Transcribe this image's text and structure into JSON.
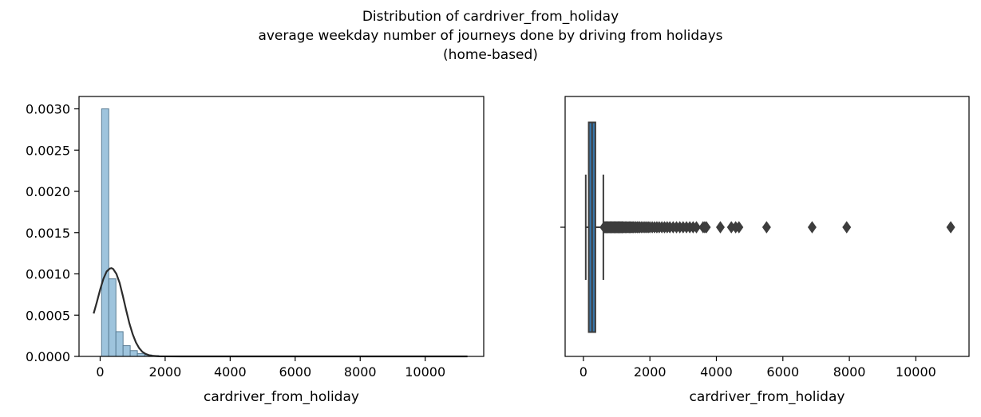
{
  "title_lines": [
    "Distribution of cardriver_from_holiday",
    "average weekday number of journeys done by driving from holidays",
    "(home-based)"
  ],
  "chart_data": [
    {
      "type": "histogram",
      "xlabel": "cardriver_from_holiday",
      "ylabel": "",
      "xlim": [
        -650,
        11800
      ],
      "ylim": [
        0,
        0.00315
      ],
      "xticks": [
        0,
        2000,
        4000,
        6000,
        8000,
        10000
      ],
      "xtick_labels": [
        "0",
        "2000",
        "4000",
        "6000",
        "8000",
        "10000"
      ],
      "yticks": [
        0,
        0.0005,
        0.001,
        0.0015,
        0.002,
        0.0025,
        0.003
      ],
      "ytick_labels": [
        "0.0000",
        "0.0005",
        "0.0010",
        "0.0015",
        "0.0020",
        "0.0025",
        "0.0030"
      ],
      "bin_edges": [
        45,
        265,
        485,
        705,
        925,
        1145,
        1365,
        1585,
        1805,
        2025,
        2245,
        2465,
        2685,
        2905,
        3125,
        3345,
        3565,
        3785,
        4005,
        4225,
        4445,
        4665,
        4885,
        5105,
        5325,
        5545,
        5765,
        5985,
        6205,
        6425,
        6645,
        6865,
        7085,
        7305,
        7525,
        7745,
        7965,
        8185,
        8405,
        8625,
        8845,
        9065,
        9285,
        9505,
        9725,
        9945,
        10165,
        10385,
        10605,
        10825,
        11045
      ],
      "density": [
        0.003,
        0.00094,
        0.0003,
        0.00013,
        7e-05,
        3.5e-05,
        1.8e-05,
        1e-05,
        5e-06,
        3e-06,
        2e-06,
        1.5e-06,
        1e-06,
        1e-06,
        1e-06,
        8e-07,
        6e-07,
        5e-07,
        4e-07,
        4e-07,
        4e-07,
        3e-07,
        2e-07,
        2e-07,
        2e-07,
        2e-07,
        1e-07,
        1e-07,
        1e-07,
        1e-07,
        1e-07,
        1e-07,
        0,
        0,
        0,
        0,
        1e-07,
        0,
        0,
        0,
        0,
        0,
        0,
        0,
        0,
        0,
        0,
        0,
        0,
        1e-07
      ],
      "bar_color": "#9ec4dd",
      "bar_edge_color": "#5a7d95",
      "kde": {
        "color": "#2b2b2b",
        "x": [
          -200,
          -100,
          0,
          100,
          200,
          300,
          350,
          400,
          500,
          600,
          700,
          800,
          900,
          1000,
          1100,
          1200,
          1300,
          1400,
          1500,
          1600,
          1800,
          2000,
          2500,
          3000,
          4000,
          6000,
          8000,
          10000,
          11300
        ],
        "y": [
          0.00052,
          0.00066,
          0.00081,
          0.00094,
          0.00103,
          0.001065,
          0.00107,
          0.00106,
          0.001,
          0.00089,
          0.00073,
          0.00056,
          0.0004,
          0.00027,
          0.00017,
          0.0001,
          5.5e-05,
          3e-05,
          1.5e-05,
          7e-06,
          2e-06,
          6e-07,
          2e-07,
          1e-07,
          5e-08,
          2e-08,
          1e-08,
          1e-08,
          1e-08
        ]
      }
    },
    {
      "type": "box",
      "xlabel": "cardriver_from_holiday",
      "ylabel": "",
      "xlim": [
        -550,
        11600
      ],
      "xticks": [
        0,
        2000,
        4000,
        6000,
        8000,
        10000
      ],
      "xtick_labels": [
        "0",
        "2000",
        "4000",
        "6000",
        "8000",
        "10000"
      ],
      "box_color": "#3776ab",
      "line_color": "#3d3d3d",
      "whisker_low": 70,
      "q1": 160,
      "median": 260,
      "q3": 360,
      "whisker_high": 600,
      "outliers": [
        620,
        640,
        660,
        680,
        700,
        720,
        740,
        760,
        780,
        800,
        820,
        840,
        860,
        880,
        900,
        920,
        940,
        960,
        980,
        1000,
        1020,
        1040,
        1060,
        1080,
        1100,
        1120,
        1140,
        1160,
        1180,
        1200,
        1230,
        1260,
        1290,
        1320,
        1350,
        1380,
        1410,
        1440,
        1470,
        1500,
        1540,
        1580,
        1620,
        1660,
        1700,
        1750,
        1800,
        1850,
        1900,
        1950,
        2000,
        2070,
        2140,
        2210,
        2280,
        2360,
        2440,
        2520,
        2600,
        2700,
        2800,
        2900,
        3000,
        3100,
        3200,
        3300,
        3400,
        3600,
        3650,
        3700,
        4120,
        4450,
        4580,
        4680,
        5510,
        6880,
        7920,
        11050
      ]
    }
  ]
}
